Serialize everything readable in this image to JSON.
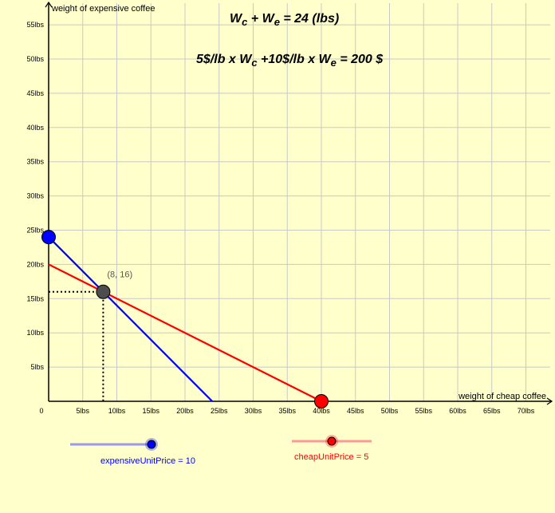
{
  "chart_data": {
    "type": "line",
    "xlabel": "weight of cheap coffee",
    "ylabel": "weight of expensive coffee",
    "xlim": [
      0,
      74
    ],
    "ylim": [
      0,
      58
    ],
    "x_ticks": [
      5,
      10,
      15,
      20,
      25,
      30,
      35,
      40,
      45,
      50,
      55,
      60,
      65,
      70
    ],
    "y_ticks": [
      5,
      10,
      15,
      20,
      25,
      30,
      35,
      40,
      45,
      50,
      55
    ],
    "tick_suffix": "lbs",
    "origin_label": "0",
    "grid": true,
    "series": [
      {
        "name": "Wc + We = 24",
        "color": "#0000ff",
        "points": [
          [
            0,
            24
          ],
          [
            24,
            0
          ]
        ]
      },
      {
        "name": "5Wc + 10We = 200",
        "color": "#ff0000",
        "points": [
          [
            0,
            20
          ],
          [
            40,
            0
          ]
        ]
      }
    ],
    "markers": [
      {
        "name": "y-intercept",
        "x": 0,
        "y": 24,
        "color": "#0000ff"
      },
      {
        "name": "x-intercept",
        "x": 40,
        "y": 0,
        "color": "#ff0000"
      },
      {
        "name": "intersection",
        "x": 8,
        "y": 16,
        "color": "#4d4d4d",
        "label": "(8, 16)"
      }
    ]
  },
  "equations": {
    "eq1": {
      "a": "W",
      "a_sub": "c",
      "mid": " + W",
      "b_sub": "e",
      "tail": " = 24 (lbs)"
    },
    "eq2": {
      "a": "5$/lb x W",
      "a_sub": "c",
      "mid": " +10$/lb x W",
      "b_sub": "e",
      "tail": " = 200 $"
    }
  },
  "sliders": {
    "expensive": {
      "name_text": "expensive",
      "var_text": "UnitPrice = 10",
      "min": 0,
      "max": 10,
      "value": 10,
      "color": "#0000ff",
      "track_color": "#9999ee"
    },
    "cheap": {
      "name_text": "cheap",
      "var_text": "UnitPrice = 5",
      "min": 0,
      "max": 10,
      "value": 5,
      "color": "#ff0000",
      "track_color": "#ff9999"
    }
  }
}
